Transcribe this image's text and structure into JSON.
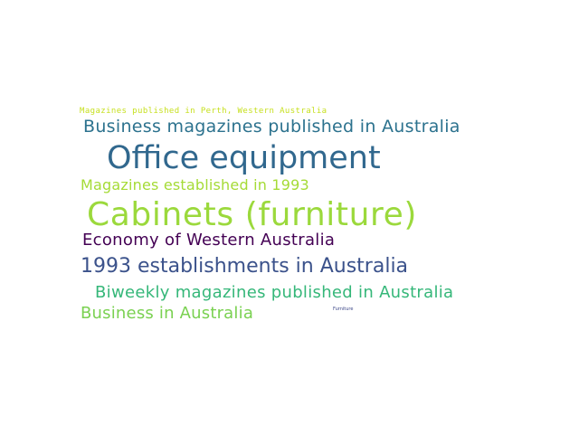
{
  "words": [
    {
      "text": "Magazines published in Perth, Western Australia",
      "color": "#c7e020"
    },
    {
      "text": "Business magazines published in Australia",
      "color": "#2c728e"
    },
    {
      "text": "Office equipment",
      "color": "#31688e"
    },
    {
      "text": "Magazines established in 1993",
      "color": "#a5db36"
    },
    {
      "text": "Cabinets (furniture)",
      "color": "#9bd93c"
    },
    {
      "text": "Economy of Western Australia",
      "color": "#440154"
    },
    {
      "text": "1993 establishments in Australia",
      "color": "#3b528b"
    },
    {
      "text": "Biweekly magazines published in Australia",
      "color": "#35b779"
    },
    {
      "text": "Business in Australia",
      "color": "#7ad151"
    },
    {
      "text": "Furniture",
      "color": "#3e4989"
    }
  ]
}
